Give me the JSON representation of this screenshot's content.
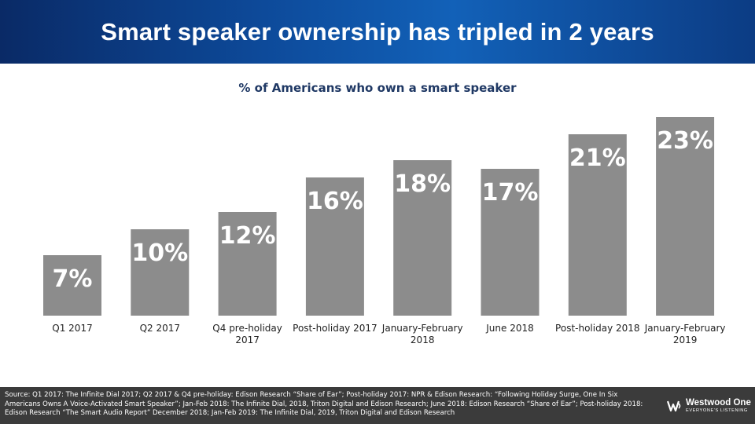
{
  "header": {
    "title": "Smart speaker ownership has tripled in 2 years"
  },
  "chart_data": {
    "type": "bar",
    "title": "% of Americans who own a smart speaker",
    "categories": [
      [
        "Q1 2017"
      ],
      [
        "Q2 2017"
      ],
      [
        "Q4 pre-holiday",
        "2017"
      ],
      [
        "Post-holiday 2017"
      ],
      [
        "January-February",
        "2018"
      ],
      [
        "June  2018"
      ],
      [
        "Post-holiday 2018"
      ],
      [
        "January-February",
        "2019"
      ]
    ],
    "values": [
      7,
      10,
      12,
      16,
      18,
      17,
      21,
      23
    ],
    "data_labels": [
      "7%",
      "10%",
      "12%",
      "16%",
      "18%",
      "17%",
      "21%",
      "23%"
    ],
    "xlabel": "",
    "ylabel": "",
    "ylim": [
      0,
      23
    ],
    "grid": false,
    "bar_color": "#8c8c8c"
  },
  "footer": {
    "source": "Source: Q1 2017: The Infinite Dial 2017; Q2 2017 & Q4 pre-holiday: Edison Research “Share of Ear”; Post-holiday 2017: NPR & Edison Research: “Following Holiday Surge, One In Six Americans Owns A Voice-Activated Smart Speaker”; Jan-Feb 2018: The Infinite Dial, 2018, Triton Digital and Edison Research; June 2018: Edison Research “Share of Ear”; Post-holiday 2018: Edison Research “The Smart Audio Report” December 2018; Jan-Feb 2019: The Infinite Dial, 2019, Triton Digital and Edison Research",
    "logo_name": "Westwood One",
    "logo_tagline": "EVERYONE'S LISTENING",
    "logo_icon": "westwood-one-logo-icon"
  }
}
